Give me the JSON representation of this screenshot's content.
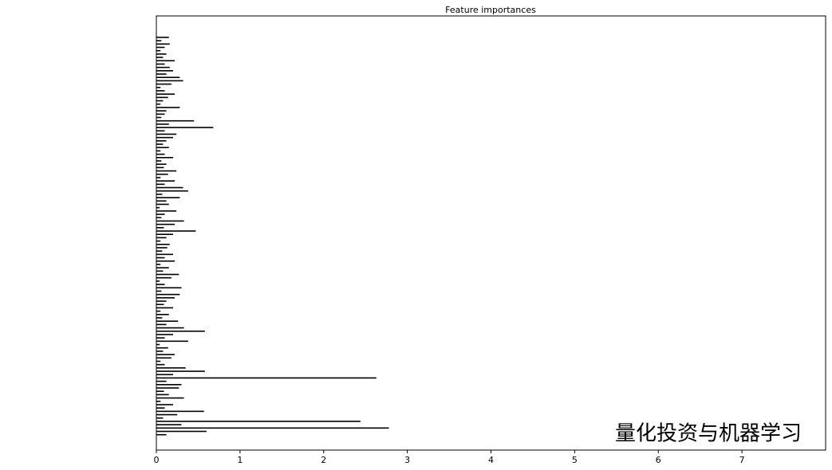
{
  "chart_data": {
    "type": "barh",
    "title": "Feature importances",
    "watermark": "量化投资与机器学习",
    "color": "#000000",
    "categories": [
      null,
      null,
      null,
      null,
      null,
      null,
      null,
      null,
      null,
      null,
      null,
      null,
      null,
      null,
      null,
      null,
      null,
      null,
      null,
      null,
      null,
      null,
      null,
      null,
      null,
      null,
      null,
      null,
      null,
      null,
      null,
      null,
      null,
      null,
      null,
      null,
      null,
      null,
      null,
      null,
      null,
      null,
      null,
      null,
      null,
      null,
      null,
      null,
      null,
      null,
      null,
      null,
      null,
      null,
      null,
      null,
      null,
      null,
      null,
      null,
      null,
      null,
      null,
      null,
      null,
      null,
      null,
      null,
      null,
      null,
      null,
      null,
      null,
      null,
      null,
      null,
      null,
      null,
      null,
      null,
      null,
      null,
      null,
      null,
      null,
      null,
      null,
      null,
      null,
      null,
      null,
      null,
      null,
      null,
      null,
      null,
      null,
      null,
      null,
      null,
      null,
      null,
      null,
      null,
      null,
      null,
      null,
      null,
      null,
      null,
      null,
      null,
      null,
      null,
      null,
      null,
      null,
      null,
      null,
      null
    ],
    "values": [
      0.12,
      0.6,
      2.78,
      0.3,
      2.44,
      0.08,
      0.25,
      0.57,
      0.1,
      0.2,
      0.05,
      0.33,
      0.15,
      0.09,
      0.27,
      0.3,
      0.12,
      2.63,
      0.2,
      0.58,
      0.35,
      0.1,
      0.05,
      0.18,
      0.22,
      0.08,
      0.14,
      0.04,
      0.38,
      0.1,
      0.2,
      0.58,
      0.33,
      0.12,
      0.26,
      0.07,
      0.15,
      0.05,
      0.2,
      0.09,
      0.12,
      0.22,
      0.28,
      0.06,
      0.3,
      0.1,
      0.04,
      0.18,
      0.27,
      0.08,
      0.15,
      0.05,
      0.22,
      0.1,
      0.2,
      0.07,
      0.13,
      0.16,
      0.05,
      0.12,
      0.2,
      0.47,
      0.09,
      0.22,
      0.33,
      0.06,
      0.1,
      0.24,
      0.04,
      0.15,
      0.12,
      0.28,
      0.07,
      0.38,
      0.32,
      0.1,
      0.22,
      0.05,
      0.14,
      0.24,
      0.09,
      0.12,
      0.06,
      0.2,
      0.1,
      0.05,
      0.15,
      0.08,
      0.12,
      0.2,
      0.24,
      0.1,
      0.68,
      0.15,
      0.45,
      0.06,
      0.1,
      0.12,
      0.28,
      0.05,
      0.08,
      0.14,
      0.22,
      0.1,
      0.05,
      0.18,
      0.32,
      0.28,
      0.12,
      0.2,
      0.16,
      0.1,
      0.22,
      0.08,
      0.12,
      0.05,
      0.1,
      0.16,
      0.06,
      0.15
    ],
    "xlim": [
      0,
      8
    ],
    "xticks": [
      0,
      1,
      2,
      3,
      4,
      5,
      6,
      7
    ]
  }
}
